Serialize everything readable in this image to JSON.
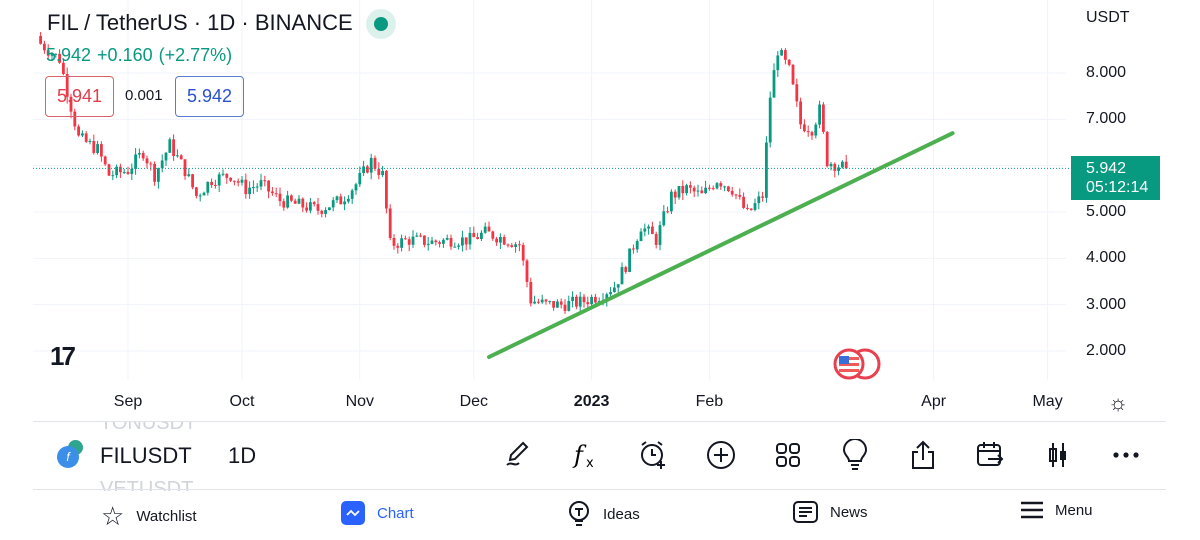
{
  "header": {
    "title": "FIL / TetherUS · 1D · BINANCE",
    "price": "5.942",
    "change": "+0.160",
    "change_pct": "(+2.77%)",
    "sell": "5.941",
    "spread": "0.001",
    "buy": "5.942"
  },
  "price_axis": {
    "unit": "USDT",
    "labels": [
      "8.000",
      "7.000",
      "5.000",
      "4.000",
      "3.000",
      "2.000"
    ],
    "current_price": "5.942",
    "countdown": "05:12:14"
  },
  "time_axis": {
    "labels": [
      {
        "t": "Sep",
        "d": "2022-09-01"
      },
      {
        "t": "Oct",
        "d": "2022-10-01"
      },
      {
        "t": "Nov",
        "d": "2022-11-01"
      },
      {
        "t": "Dec",
        "d": "2022-12-01"
      },
      {
        "t": "2023",
        "d": "2023-01-01",
        "bold": true
      },
      {
        "t": "Feb",
        "d": "2023-02-01"
      },
      {
        "t": "Apr",
        "d": "2023-04-01"
      },
      {
        "t": "May",
        "d": "2023-05-01"
      }
    ]
  },
  "colors": {
    "up": "#089981",
    "down": "#f23645",
    "trendline": "#4caf50",
    "accent": "#2962ff"
  },
  "chart_data": {
    "type": "candlestick",
    "ylim": [
      1.3,
      9.0
    ],
    "closes_approx": [
      [
        "2022-08-08",
        8.7
      ],
      [
        "2022-08-14",
        8.3
      ],
      [
        "2022-08-19",
        6.6
      ],
      [
        "2022-08-24",
        6.35
      ],
      [
        "2022-08-27",
        5.8
      ],
      [
        "2022-09-01",
        5.9
      ],
      [
        "2022-09-05",
        6.3
      ],
      [
        "2022-09-08",
        5.8
      ],
      [
        "2022-09-12",
        6.45
      ],
      [
        "2022-09-16",
        5.9
      ],
      [
        "2022-09-19",
        5.35
      ],
      [
        "2022-09-23",
        5.7
      ],
      [
        "2022-09-28",
        5.8
      ],
      [
        "2022-10-02",
        5.5
      ],
      [
        "2022-10-06",
        5.6
      ],
      [
        "2022-10-11",
        5.25
      ],
      [
        "2022-10-16",
        5.15
      ],
      [
        "2022-10-21",
        5.05
      ],
      [
        "2022-10-27",
        5.25
      ],
      [
        "2022-10-31",
        5.6
      ],
      [
        "2022-11-04",
        6.1
      ],
      [
        "2022-11-07",
        5.8
      ],
      [
        "2022-11-09",
        4.3
      ],
      [
        "2022-11-14",
        4.4
      ],
      [
        "2022-11-20",
        4.35
      ],
      [
        "2022-11-25",
        4.4
      ],
      [
        "2022-11-30",
        4.4
      ],
      [
        "2022-12-04",
        4.55
      ],
      [
        "2022-12-08",
        4.45
      ],
      [
        "2022-12-13",
        4.3
      ],
      [
        "2022-12-16",
        3.1
      ],
      [
        "2022-12-20",
        3.0
      ],
      [
        "2022-12-24",
        3.0
      ],
      [
        "2022-12-29",
        3.05
      ],
      [
        "2023-01-03",
        3.2
      ],
      [
        "2023-01-07",
        3.4
      ],
      [
        "2023-01-10",
        3.85
      ],
      [
        "2023-01-14",
        4.7
      ],
      [
        "2023-01-18",
        4.4
      ],
      [
        "2023-01-22",
        5.35
      ],
      [
        "2023-01-26",
        5.5
      ],
      [
        "2023-01-30",
        5.35
      ],
      [
        "2023-02-03",
        5.7
      ],
      [
        "2023-02-07",
        5.5
      ],
      [
        "2023-02-11",
        4.95
      ],
      [
        "2023-02-15",
        5.35
      ],
      [
        "2023-02-17",
        7.5
      ],
      [
        "2023-02-19",
        8.5
      ],
      [
        "2023-02-22",
        8.05
      ],
      [
        "2023-02-25",
        6.9
      ],
      [
        "2023-02-28",
        6.8
      ],
      [
        "2023-03-02",
        7.2
      ],
      [
        "2023-03-04",
        6.1
      ],
      [
        "2023-03-09",
        5.942
      ]
    ],
    "trendline": [
      [
        "2022-12-05",
        1.87
      ],
      [
        "2023-04-06",
        6.7
      ]
    ]
  },
  "symbol_bar": {
    "prev": "TONUSDT",
    "symbol": "FILUSDT",
    "next": "VETUSDT",
    "timeframe": "1D",
    "tools": [
      "draw-icon",
      "indicators-fx-icon",
      "alert-clock-icon",
      "add-circle-icon",
      "layouts-grid-icon",
      "ideas-bulb-icon",
      "share-icon",
      "calendar-replay-icon",
      "candle-type-icon",
      "more-icon"
    ]
  },
  "nav": {
    "watchlist": "Watchlist",
    "chart": "Chart",
    "ideas": "Ideas",
    "news": "News",
    "menu": "Menu"
  }
}
